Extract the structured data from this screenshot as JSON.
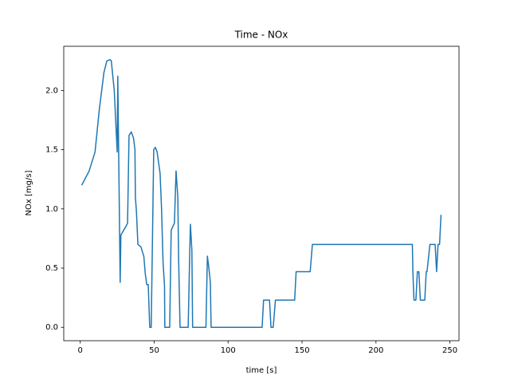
{
  "chart_data": {
    "type": "line",
    "title": "Time - NOx",
    "x_label": "time [s]",
    "y_label": "NOx [mg/s]",
    "series": [
      {
        "name": "NOx",
        "color": "#1f77b4",
        "x": [
          1,
          6,
          10,
          13,
          16,
          18,
          20,
          21,
          23,
          25,
          25.4,
          27,
          27.5,
          30.8,
          32,
          33,
          34.5,
          36,
          37,
          37.3,
          38,
          39,
          41,
          43,
          44,
          45,
          46,
          47,
          48,
          49.7,
          50.8,
          52,
          54,
          55,
          56,
          57,
          57.2,
          60.5,
          61.5,
          62.6,
          63.7,
          64.8,
          66,
          66.5,
          67.5,
          73,
          74,
          74.5,
          75.5,
          76,
          85,
          86,
          87,
          88,
          88.5,
          123,
          124,
          128,
          129,
          130.5,
          132,
          145,
          146,
          155.5,
          157,
          224.6,
          225,
          225.7,
          227,
          228,
          229,
          230,
          233,
          234,
          234.5,
          236.5,
          240,
          241,
          242,
          243,
          244
        ],
        "values": [
          1.2,
          1.32,
          1.48,
          1.85,
          2.15,
          2.25,
          2.26,
          2.25,
          2.0,
          1.48,
          2.12,
          0.38,
          0.78,
          0.85,
          0.88,
          1.62,
          1.65,
          1.6,
          1.5,
          1.1,
          0.98,
          0.7,
          0.68,
          0.6,
          0.45,
          0.36,
          0.36,
          0,
          0,
          1.5,
          1.52,
          1.48,
          1.3,
          1.0,
          0.55,
          0.35,
          0,
          0,
          0.82,
          0.85,
          0.88,
          1.32,
          1.1,
          0.6,
          0,
          0,
          0.6,
          0.87,
          0.65,
          0,
          0,
          0.6,
          0.5,
          0.38,
          0,
          0,
          0.23,
          0.23,
          0,
          0,
          0.23,
          0.23,
          0.47,
          0.47,
          0.7,
          0.7,
          0.45,
          0.23,
          0.23,
          0.47,
          0.47,
          0.23,
          0.23,
          0.47,
          0.47,
          0.7,
          0.7,
          0.47,
          0.7,
          0.7,
          0.95
        ]
      }
    ],
    "xlim": [
      -11.15,
      256.15
    ],
    "ylim": [
      -0.113,
      2.373
    ],
    "xticks": [
      0,
      50,
      100,
      150,
      200,
      250
    ],
    "yticks": [
      {
        "value": 0,
        "label": "0.0"
      },
      {
        "value": 0.5,
        "label": "0.5"
      },
      {
        "value": 1,
        "label": "1.0"
      },
      {
        "value": 1.5,
        "label": "1.5"
      },
      {
        "value": 2,
        "label": "2.0"
      }
    ],
    "grid": false
  }
}
